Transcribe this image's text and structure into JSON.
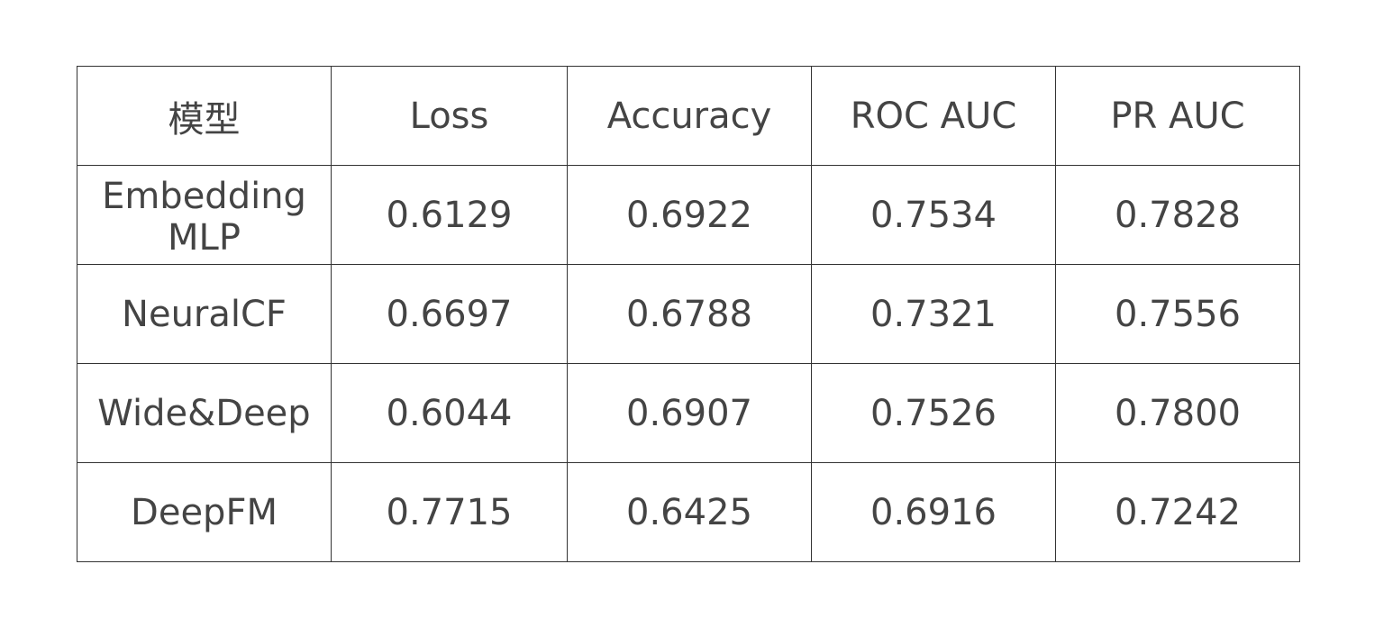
{
  "colors": {
    "text": "#444444",
    "highlight": "#e53427",
    "border": "#333333"
  },
  "table": {
    "headers": [
      "模型",
      "Loss",
      "Accuracy",
      "ROC AUC",
      "PR AUC"
    ],
    "rows": [
      {
        "model": "Embedding MLP",
        "values": [
          "0.6129",
          "0.6922",
          "0.7534",
          "0.7828"
        ],
        "highlighted": true
      },
      {
        "model": "NeuralCF",
        "values": [
          "0.6697",
          "0.6788",
          "0.7321",
          "0.7556"
        ],
        "highlighted": false
      },
      {
        "model": "Wide&Deep",
        "values": [
          "0.6044",
          "0.6907",
          "0.7526",
          "0.7800"
        ],
        "highlighted": true
      },
      {
        "model": "DeepFM",
        "values": [
          "0.7715",
          "0.6425",
          "0.6916",
          "0.7242"
        ],
        "highlighted": false
      }
    ]
  }
}
